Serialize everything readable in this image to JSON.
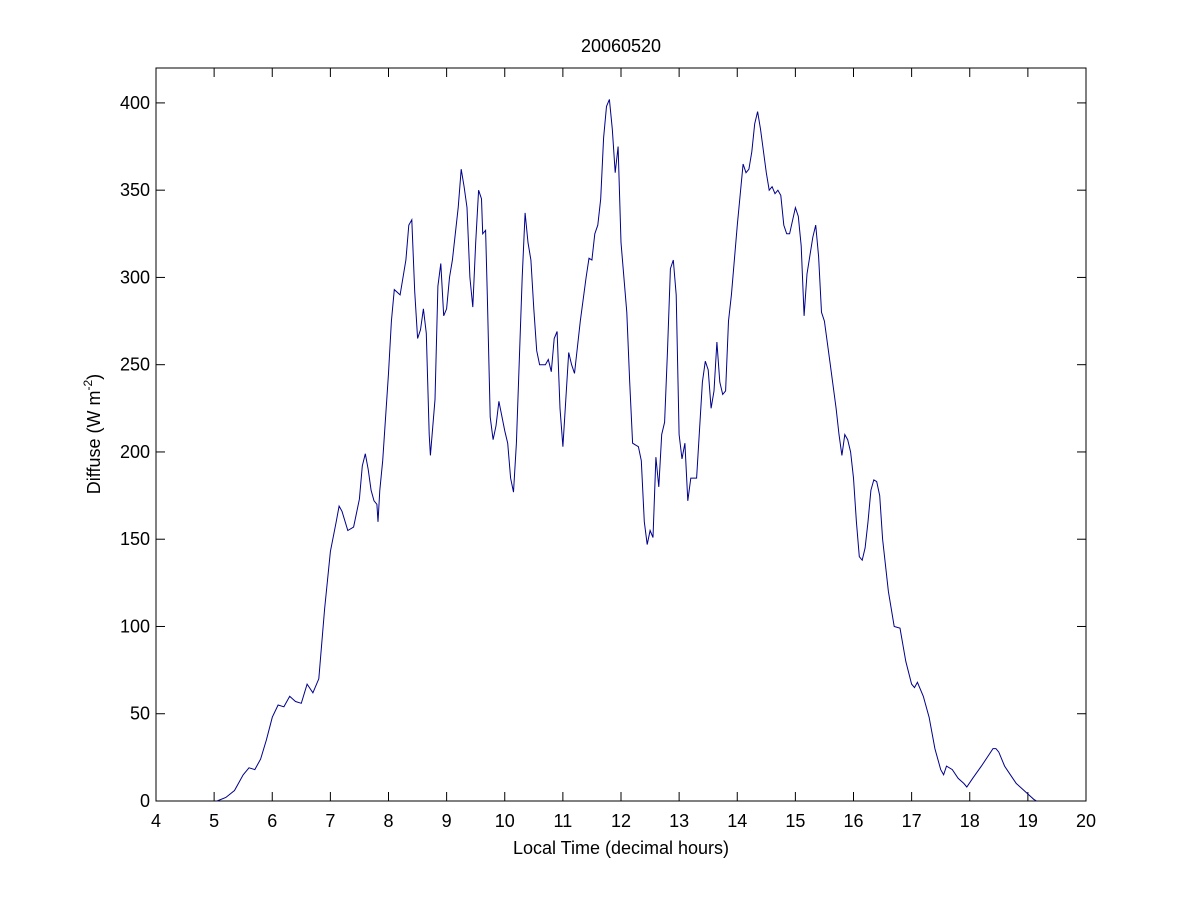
{
  "chart_data": {
    "type": "line",
    "title": "20060520",
    "xlabel": "Local Time (decimal hours)",
    "ylabel": {
      "prefix": "Diffuse (W m",
      "superscript": "-2",
      "suffix": ")"
    },
    "xlim": [
      4,
      20
    ],
    "ylim": [
      0,
      420
    ],
    "xticks": [
      4,
      5,
      6,
      7,
      8,
      9,
      10,
      11,
      12,
      13,
      14,
      15,
      16,
      17,
      18,
      19,
      20
    ],
    "yticks": [
      0,
      50,
      100,
      150,
      200,
      250,
      300,
      350,
      400
    ],
    "grid": false,
    "line_color": "#00008b",
    "series": [
      {
        "points": [
          [
            5.05,
            0
          ],
          [
            5.2,
            2
          ],
          [
            5.35,
            6
          ],
          [
            5.5,
            15
          ],
          [
            5.6,
            19
          ],
          [
            5.7,
            18
          ],
          [
            5.8,
            24
          ],
          [
            5.9,
            35
          ],
          [
            6.0,
            48
          ],
          [
            6.1,
            55
          ],
          [
            6.2,
            54
          ],
          [
            6.3,
            60
          ],
          [
            6.4,
            57
          ],
          [
            6.5,
            56
          ],
          [
            6.6,
            67
          ],
          [
            6.7,
            62
          ],
          [
            6.8,
            70
          ],
          [
            6.9,
            110
          ],
          [
            7.0,
            143
          ],
          [
            7.1,
            160
          ],
          [
            7.15,
            169
          ],
          [
            7.2,
            166
          ],
          [
            7.3,
            155
          ],
          [
            7.4,
            157
          ],
          [
            7.5,
            173
          ],
          [
            7.55,
            192
          ],
          [
            7.6,
            199
          ],
          [
            7.65,
            190
          ],
          [
            7.7,
            178
          ],
          [
            7.75,
            172
          ],
          [
            7.8,
            170
          ],
          [
            7.82,
            160
          ],
          [
            7.85,
            178
          ],
          [
            7.9,
            195
          ],
          [
            8.0,
            245
          ],
          [
            8.05,
            275
          ],
          [
            8.1,
            293
          ],
          [
            8.2,
            290
          ],
          [
            8.3,
            310
          ],
          [
            8.35,
            330
          ],
          [
            8.4,
            333
          ],
          [
            8.45,
            292
          ],
          [
            8.5,
            265
          ],
          [
            8.55,
            270
          ],
          [
            8.6,
            282
          ],
          [
            8.65,
            268
          ],
          [
            8.7,
            210
          ],
          [
            8.72,
            198
          ],
          [
            8.8,
            230
          ],
          [
            8.85,
            295
          ],
          [
            8.9,
            308
          ],
          [
            8.95,
            278
          ],
          [
            9.0,
            282
          ],
          [
            9.05,
            300
          ],
          [
            9.1,
            310
          ],
          [
            9.2,
            340
          ],
          [
            9.25,
            362
          ],
          [
            9.3,
            352
          ],
          [
            9.35,
            340
          ],
          [
            9.4,
            300
          ],
          [
            9.45,
            283
          ],
          [
            9.5,
            320
          ],
          [
            9.55,
            350
          ],
          [
            9.6,
            345
          ],
          [
            9.62,
            325
          ],
          [
            9.67,
            327
          ],
          [
            9.7,
            290
          ],
          [
            9.75,
            220
          ],
          [
            9.8,
            207
          ],
          [
            9.85,
            215
          ],
          [
            9.9,
            229
          ],
          [
            10.0,
            212
          ],
          [
            10.05,
            205
          ],
          [
            10.1,
            185
          ],
          [
            10.15,
            177
          ],
          [
            10.2,
            205
          ],
          [
            10.3,
            300
          ],
          [
            10.35,
            337
          ],
          [
            10.4,
            320
          ],
          [
            10.45,
            310
          ],
          [
            10.5,
            282
          ],
          [
            10.55,
            258
          ],
          [
            10.6,
            250
          ],
          [
            10.7,
            250
          ],
          [
            10.75,
            253
          ],
          [
            10.8,
            246
          ],
          [
            10.85,
            265
          ],
          [
            10.9,
            269
          ],
          [
            10.95,
            225
          ],
          [
            11.0,
            203
          ],
          [
            11.05,
            230
          ],
          [
            11.1,
            257
          ],
          [
            11.15,
            250
          ],
          [
            11.2,
            245
          ],
          [
            11.3,
            275
          ],
          [
            11.4,
            300
          ],
          [
            11.45,
            311
          ],
          [
            11.5,
            310
          ],
          [
            11.55,
            325
          ],
          [
            11.6,
            330
          ],
          [
            11.65,
            345
          ],
          [
            11.7,
            380
          ],
          [
            11.75,
            398
          ],
          [
            11.8,
            402
          ],
          [
            11.85,
            385
          ],
          [
            11.9,
            360
          ],
          [
            11.95,
            375
          ],
          [
            12.0,
            320
          ],
          [
            12.1,
            280
          ],
          [
            12.15,
            240
          ],
          [
            12.2,
            205
          ],
          [
            12.3,
            203
          ],
          [
            12.35,
            195
          ],
          [
            12.4,
            160
          ],
          [
            12.45,
            147
          ],
          [
            12.5,
            155
          ],
          [
            12.55,
            151
          ],
          [
            12.6,
            197
          ],
          [
            12.65,
            180
          ],
          [
            12.7,
            210
          ],
          [
            12.75,
            217
          ],
          [
            12.8,
            258
          ],
          [
            12.85,
            305
          ],
          [
            12.9,
            310
          ],
          [
            12.95,
            290
          ],
          [
            13.0,
            210
          ],
          [
            13.05,
            196
          ],
          [
            13.1,
            205
          ],
          [
            13.15,
            172
          ],
          [
            13.2,
            185
          ],
          [
            13.3,
            185
          ],
          [
            13.4,
            240
          ],
          [
            13.45,
            252
          ],
          [
            13.5,
            247
          ],
          [
            13.55,
            225
          ],
          [
            13.6,
            235
          ],
          [
            13.65,
            263
          ],
          [
            13.7,
            240
          ],
          [
            13.75,
            233
          ],
          [
            13.8,
            235
          ],
          [
            13.85,
            275
          ],
          [
            13.9,
            290
          ],
          [
            14.0,
            330
          ],
          [
            14.1,
            365
          ],
          [
            14.15,
            360
          ],
          [
            14.2,
            362
          ],
          [
            14.25,
            372
          ],
          [
            14.3,
            388
          ],
          [
            14.35,
            395
          ],
          [
            14.4,
            385
          ],
          [
            14.5,
            360
          ],
          [
            14.55,
            350
          ],
          [
            14.6,
            352
          ],
          [
            14.65,
            348
          ],
          [
            14.7,
            350
          ],
          [
            14.75,
            347
          ],
          [
            14.8,
            330
          ],
          [
            14.85,
            325
          ],
          [
            14.9,
            325
          ],
          [
            15.0,
            340
          ],
          [
            15.05,
            335
          ],
          [
            15.1,
            318
          ],
          [
            15.15,
            278
          ],
          [
            15.2,
            302
          ],
          [
            15.3,
            323
          ],
          [
            15.35,
            330
          ],
          [
            15.4,
            312
          ],
          [
            15.45,
            280
          ],
          [
            15.5,
            275
          ],
          [
            15.6,
            250
          ],
          [
            15.7,
            225
          ],
          [
            15.75,
            210
          ],
          [
            15.8,
            198
          ],
          [
            15.85,
            210
          ],
          [
            15.9,
            207
          ],
          [
            15.95,
            200
          ],
          [
            16.0,
            185
          ],
          [
            16.05,
            160
          ],
          [
            16.1,
            140
          ],
          [
            16.15,
            138
          ],
          [
            16.2,
            145
          ],
          [
            16.25,
            160
          ],
          [
            16.3,
            178
          ],
          [
            16.35,
            184
          ],
          [
            16.4,
            183
          ],
          [
            16.45,
            175
          ],
          [
            16.5,
            150
          ],
          [
            16.6,
            120
          ],
          [
            16.7,
            100
          ],
          [
            16.8,
            99
          ],
          [
            16.9,
            80
          ],
          [
            17.0,
            67
          ],
          [
            17.05,
            65
          ],
          [
            17.1,
            68
          ],
          [
            17.2,
            60
          ],
          [
            17.3,
            48
          ],
          [
            17.4,
            30
          ],
          [
            17.5,
            18
          ],
          [
            17.55,
            15
          ],
          [
            17.6,
            20
          ],
          [
            17.7,
            18
          ],
          [
            17.8,
            13
          ],
          [
            17.9,
            10
          ],
          [
            17.95,
            8
          ],
          [
            18.05,
            13
          ],
          [
            18.2,
            20
          ],
          [
            18.3,
            25
          ],
          [
            18.4,
            30
          ],
          [
            18.45,
            30
          ],
          [
            18.5,
            28
          ],
          [
            18.6,
            20
          ],
          [
            18.7,
            15
          ],
          [
            18.8,
            10
          ],
          [
            18.9,
            7
          ],
          [
            19.0,
            4
          ],
          [
            19.1,
            1
          ],
          [
            19.15,
            0
          ]
        ]
      }
    ]
  }
}
